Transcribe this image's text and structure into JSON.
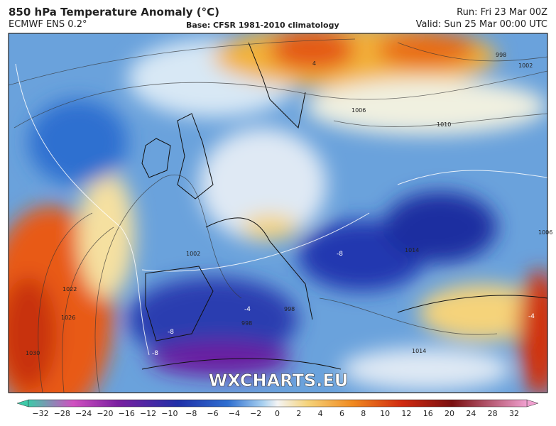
{
  "header": {
    "title": "850 hPa Temperature Anomaly (°C)",
    "model": "ECMWF ENS 0.2°",
    "base": "Base: CFSR 1981-2010 climatology",
    "run": "Run: Fri 23 Mar 00Z",
    "valid": "Valid: Sun 25 Mar 00:00 UTC"
  },
  "map": {
    "watermark": "WXCHARTS.EU",
    "contour_labels": [
      "998",
      "1002",
      "1006",
      "1010",
      "1002",
      "1022",
      "1026",
      "1030",
      "998",
      "998",
      "1014",
      "1006",
      "1014",
      "-8",
      "-4",
      "-8",
      "-8",
      "4",
      "-4"
    ]
  },
  "colorbar": {
    "ticks": [
      "−32",
      "−28",
      "−24",
      "−20",
      "−16",
      "−12",
      "−10",
      "−8",
      "−6",
      "−4",
      "−2",
      "0",
      "2",
      "4",
      "6",
      "8",
      "10",
      "12",
      "16",
      "20",
      "24",
      "28",
      "32"
    ]
  }
}
